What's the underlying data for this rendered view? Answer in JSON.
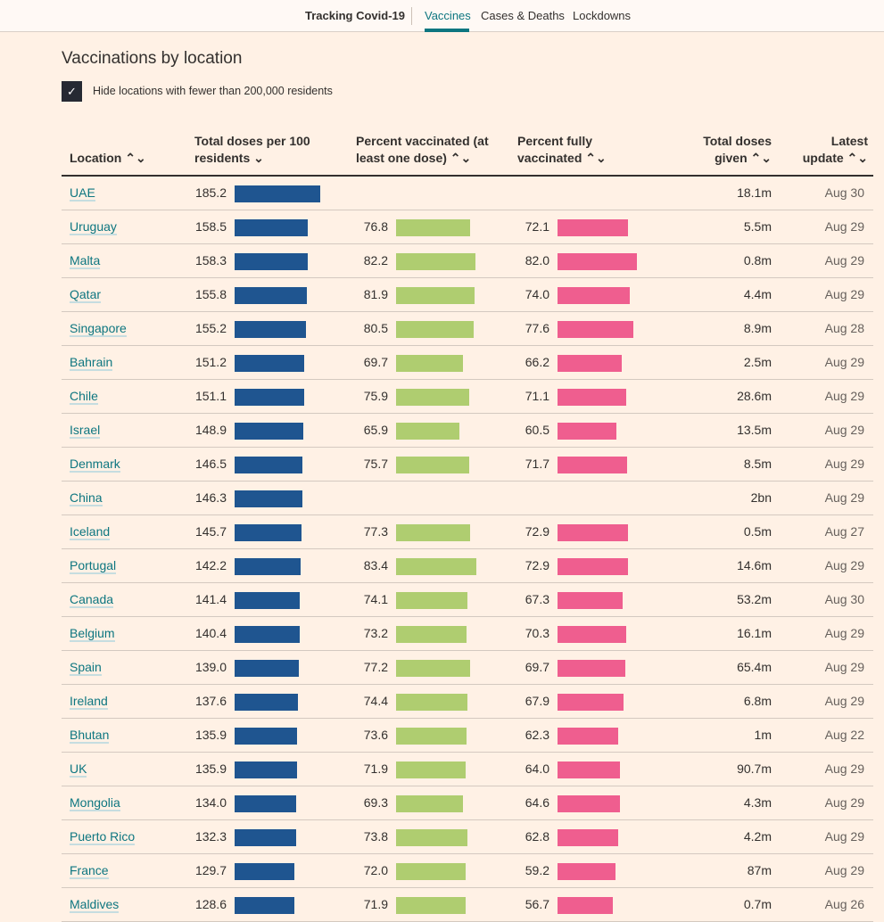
{
  "nav": {
    "brand": "Tracking Covid-19",
    "tabs": [
      "Vaccines",
      "Cases & Deaths",
      "Lockdowns"
    ],
    "active": "Vaccines"
  },
  "title": "Vaccinations by location",
  "filter": {
    "label": "Hide locations with fewer than 200,000 residents",
    "checked": true
  },
  "columns": {
    "location": "Location ⌃⌄",
    "doses": "Total doses per 100",
    "doses2": "residents ⌄",
    "pct": "Percent vaccinated (at",
    "pct2": "least one dose) ⌃⌄",
    "full": "Percent fully",
    "full2": "vaccinated ⌃⌄",
    "total": "Total doses",
    "total2": "given ⌃⌄",
    "upd": "Latest",
    "upd2": "update ⌃⌄"
  },
  "colors": {
    "doses": "#1f5590",
    "pct": "#afcd70",
    "full": "#ef5e8f",
    "link": "#0d7680"
  },
  "rows": [
    [
      "UAE",
      "185.2",
      "",
      "",
      "18.1m",
      "Aug 30"
    ],
    [
      "Uruguay",
      "158.5",
      "76.8",
      "72.1",
      "5.5m",
      "Aug 29"
    ],
    [
      "Malta",
      "158.3",
      "82.2",
      "82.0",
      "0.8m",
      "Aug 29"
    ],
    [
      "Qatar",
      "155.8",
      "81.9",
      "74.0",
      "4.4m",
      "Aug 29"
    ],
    [
      "Singapore",
      "155.2",
      "80.5",
      "77.6",
      "8.9m",
      "Aug 28"
    ],
    [
      "Bahrain",
      "151.2",
      "69.7",
      "66.2",
      "2.5m",
      "Aug 29"
    ],
    [
      "Chile",
      "151.1",
      "75.9",
      "71.1",
      "28.6m",
      "Aug 29"
    ],
    [
      "Israel",
      "148.9",
      "65.9",
      "60.5",
      "13.5m",
      "Aug 29"
    ],
    [
      "Denmark",
      "146.5",
      "75.7",
      "71.7",
      "8.5m",
      "Aug 29"
    ],
    [
      "China",
      "146.3",
      "",
      "",
      "2bn",
      "Aug 29"
    ],
    [
      "Iceland",
      "145.7",
      "77.3",
      "72.9",
      "0.5m",
      "Aug 27"
    ],
    [
      "Portugal",
      "142.2",
      "83.4",
      "72.9",
      "14.6m",
      "Aug 29"
    ],
    [
      "Canada",
      "141.4",
      "74.1",
      "67.3",
      "53.2m",
      "Aug 30"
    ],
    [
      "Belgium",
      "140.4",
      "73.2",
      "70.3",
      "16.1m",
      "Aug 29"
    ],
    [
      "Spain",
      "139.0",
      "77.2",
      "69.7",
      "65.4m",
      "Aug 29"
    ],
    [
      "Ireland",
      "137.6",
      "74.4",
      "67.9",
      "6.8m",
      "Aug 29"
    ],
    [
      "Bhutan",
      "135.9",
      "73.6",
      "62.3",
      "1m",
      "Aug 22"
    ],
    [
      "UK",
      "135.9",
      "71.9",
      "64.0",
      "90.7m",
      "Aug 29"
    ],
    [
      "Mongolia",
      "134.0",
      "69.3",
      "64.6",
      "4.3m",
      "Aug 29"
    ],
    [
      "Puerto Rico",
      "132.3",
      "73.8",
      "62.8",
      "4.2m",
      "Aug 29"
    ],
    [
      "France",
      "129.7",
      "72.0",
      "59.2",
      "87m",
      "Aug 29"
    ],
    [
      "Maldives",
      "128.6",
      "71.9",
      "56.7",
      "0.7m",
      "Aug 26"
    ]
  ]
}
